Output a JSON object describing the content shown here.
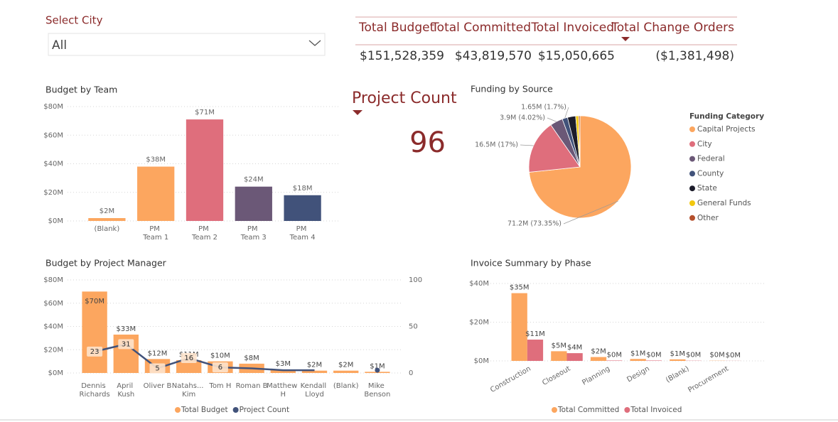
{
  "slicer": {
    "title": "Select City",
    "value": "All"
  },
  "kpis": [
    {
      "label": "Total Budget",
      "value": "$151,528,359"
    },
    {
      "label": "Total Committed",
      "value": "$43,819,570"
    },
    {
      "label": "Total Invoiced",
      "value": "$15,050,665"
    },
    {
      "label": "Total Change Orders",
      "value": "($1,381,498)"
    }
  ],
  "card": {
    "title": "Project Count",
    "value": "96"
  },
  "chart_data": [
    {
      "type": "bar",
      "title": "Budget by Team",
      "categories": [
        "(Blank)",
        "PM Team 1",
        "PM Team 2",
        "PM Team 3",
        "PM Team 4"
      ],
      "values": [
        2,
        38,
        71,
        24,
        18
      ],
      "value_labels": [
        "$2M",
        "$38M",
        "$71M",
        "$24M",
        "$18M"
      ],
      "colors": [
        "#fca65f",
        "#fca65f",
        "#df6e7c",
        "#6b5877",
        "#41527a"
      ],
      "ylim": [
        0,
        80
      ],
      "yticks": [
        {
          "value": 0,
          "label": "$0M"
        },
        {
          "value": 20,
          "label": "$20M"
        },
        {
          "value": 40,
          "label": "$40M"
        },
        {
          "value": 60,
          "label": "$60M"
        },
        {
          "value": 80,
          "label": "$80M"
        }
      ],
      "grid": true
    },
    {
      "type": "pie",
      "title": "Funding by Source",
      "legend_title": "Funding Category",
      "categories": [
        "Capital Projects",
        "City",
        "Federal",
        "County",
        "State",
        "General Funds",
        "Other"
      ],
      "values": [
        71.2,
        16.5,
        3.9,
        1.65,
        2.5,
        0.9,
        0.42
      ],
      "value_labels": [
        "71.2M (73.35%)",
        "16.5M (17%)",
        "3.9M (4.02%)",
        "1.65M (1.7%)",
        null,
        null,
        null
      ],
      "colors": [
        "#fca65f",
        "#df6e7c",
        "#6b5877",
        "#41527a",
        "#1c1c2a",
        "#f2c80f",
        "#b5502c"
      ]
    },
    {
      "type": "combo",
      "title": "Budget by Project Manager",
      "categories": [
        "Dennis Richards",
        "April Kush",
        "Oliver B",
        "Natahs... Kim",
        "Tom H",
        "Roman B",
        "Matthew H",
        "Kendall Lloyd",
        "(Blank)",
        "Mike Benson"
      ],
      "series": [
        {
          "name": "Total Budget",
          "color": "#fca65f",
          "values": [
            70,
            33,
            12,
            11,
            10,
            8,
            3,
            2,
            2,
            1
          ],
          "value_labels": [
            "$70M",
            "$33M",
            "$12M",
            "$11M",
            "$10M",
            "$8M",
            "$3M",
            "$2M",
            "$2M",
            "$1M"
          ]
        },
        {
          "name": "Project Count",
          "color": "#41527a",
          "axis": "y2",
          "values": [
            23,
            31,
            5,
            16,
            6,
            5,
            3,
            3,
            null,
            3
          ],
          "value_labels": [
            "23",
            "31",
            "5",
            "16",
            "6",
            null,
            null,
            null,
            null,
            null
          ]
        }
      ],
      "ylim": [
        0,
        80
      ],
      "yticks": [
        {
          "value": 0,
          "label": "$0M"
        },
        {
          "value": 20,
          "label": "$20M"
        },
        {
          "value": 40,
          "label": "$40M"
        },
        {
          "value": 60,
          "label": "$60M"
        },
        {
          "value": 80,
          "label": "$80M"
        }
      ],
      "y2lim": [
        0,
        100
      ],
      "y2ticks": [
        0,
        50,
        100
      ],
      "grid": true
    },
    {
      "type": "grouped_bar",
      "title": "Invoice Summary by Phase",
      "categories": [
        "Construction",
        "Closeout",
        "Planning",
        "Design",
        "(Blank)",
        "Procurement"
      ],
      "series": [
        {
          "name": "Total Committed",
          "color": "#fca65f",
          "values": [
            35,
            5,
            2,
            1,
            0.8,
            0.1
          ],
          "value_labels": [
            "$35M",
            "$5M",
            "$2M",
            "$1M",
            "$1M",
            "$0M"
          ]
        },
        {
          "name": "Total Invoiced",
          "color": "#df6e7c",
          "values": [
            11,
            4,
            0.2,
            0.2,
            0.1,
            0.05
          ],
          "value_labels": [
            "$11M",
            "$4M",
            "$0M",
            "$0M",
            "$0M",
            "$0M"
          ]
        }
      ],
      "ylim": [
        0,
        40
      ],
      "yticks": [
        {
          "value": 0,
          "label": "$0M"
        },
        {
          "value": 20,
          "label": "$20M"
        },
        {
          "value": 40,
          "label": "$40M"
        }
      ],
      "grid": true
    }
  ]
}
